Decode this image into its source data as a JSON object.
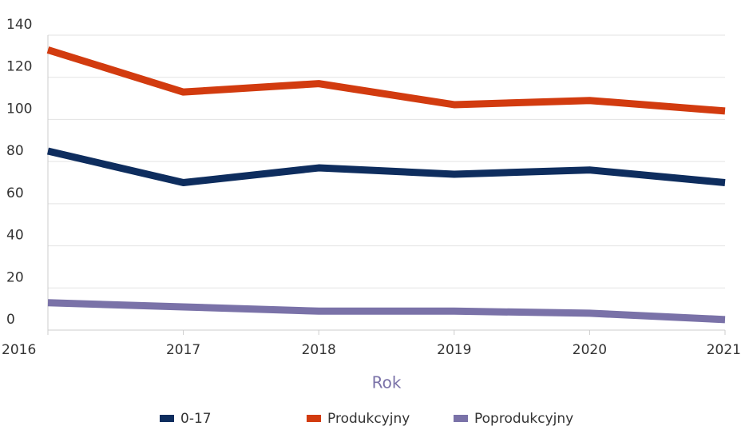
{
  "chart_data": {
    "type": "line",
    "xlabel": "Rok",
    "x": [
      2016,
      2017,
      2018,
      2019,
      2020,
      2021
    ],
    "xlim": [
      2016,
      2021
    ],
    "xticks": [
      2016,
      2017,
      2018,
      2019,
      2020,
      2021
    ],
    "ylim": [
      0,
      140
    ],
    "yticks": [
      0,
      20,
      40,
      60,
      80,
      100,
      120,
      140
    ],
    "grid": true,
    "legend": "bottom",
    "series": [
      {
        "name": "0-17",
        "color": "#0e2d5e",
        "values": [
          85,
          70,
          77,
          74,
          76,
          70
        ]
      },
      {
        "name": "Produkcyjny",
        "color": "#d23b0f",
        "values": [
          133,
          113,
          117,
          107,
          109,
          104
        ]
      },
      {
        "name": "Poprodukcyjny",
        "color": "#7a72a8",
        "values": [
          13,
          11,
          9,
          9,
          8,
          5
        ]
      }
    ]
  }
}
